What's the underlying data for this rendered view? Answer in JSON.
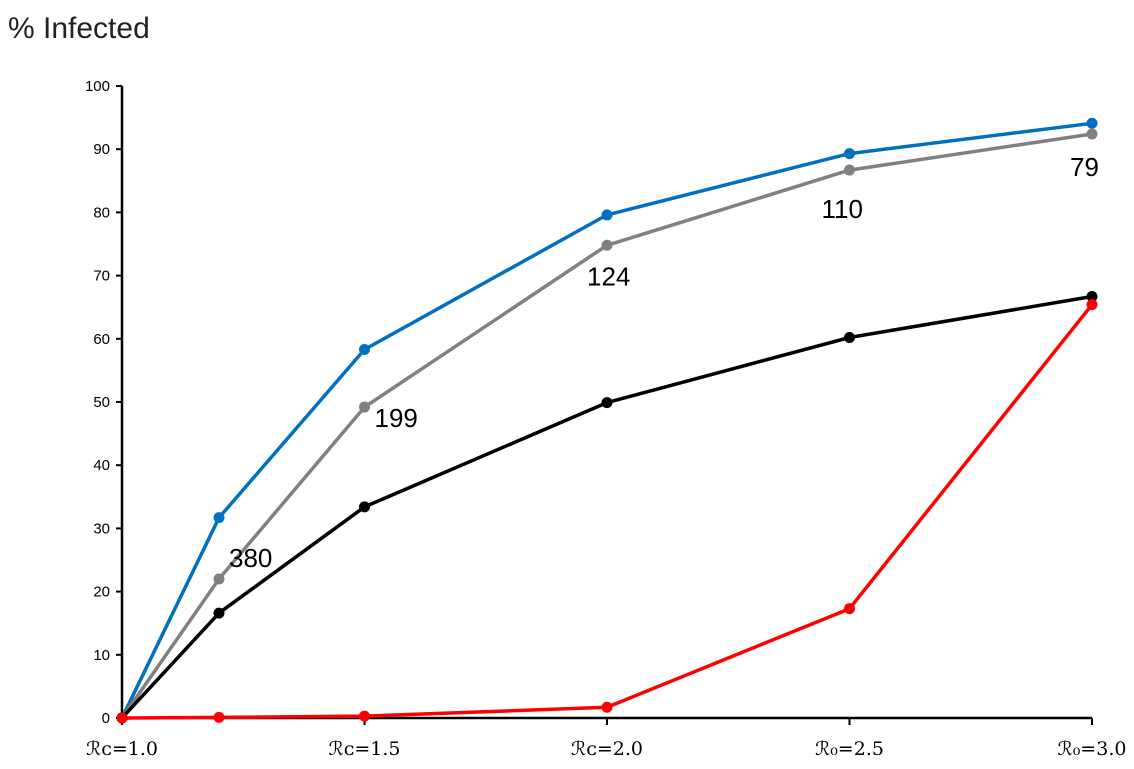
{
  "chart_data": {
    "type": "line",
    "title": "% Infected",
    "xlabel": "",
    "ylabel": "",
    "ylim": [
      0,
      100
    ],
    "yticks": [
      0,
      10,
      20,
      30,
      40,
      50,
      60,
      70,
      80,
      90,
      100
    ],
    "x_range": [
      1.0,
      3.0
    ],
    "categories": [
      {
        "x": 1.0,
        "label": "ℛᴄ=1.0"
      },
      {
        "x": 1.5,
        "label": "ℛᴄ=1.5"
      },
      {
        "x": 2.0,
        "label": "ℛᴄ=2.0"
      },
      {
        "x": 2.5,
        "label": "ℛ₀=2.5"
      },
      {
        "x": 3.0,
        "label": "ℛ₀=3.0"
      }
    ],
    "x": [
      1.0,
      1.2,
      1.5,
      2.0,
      2.5,
      3.0
    ],
    "grid": false,
    "legend": "none",
    "series": [
      {
        "color": "#0070C0",
        "values": [
          0,
          31.7,
          58.3,
          79.6,
          89.3,
          94.1
        ]
      },
      {
        "color": "#808080",
        "values": [
          0,
          22.0,
          49.2,
          74.8,
          86.7,
          92.4
        ]
      },
      {
        "color": "#000000",
        "values": [
          0,
          16.6,
          33.4,
          49.9,
          60.2,
          66.7
        ]
      },
      {
        "color": "#FF0000",
        "values": [
          0,
          0.1,
          0.3,
          1.7,
          17.3,
          65.4
        ]
      }
    ],
    "annotations": [
      {
        "text": "380",
        "x": 1.2,
        "y": 22.0
      },
      {
        "text": "199",
        "x": 1.5,
        "y": 49.2
      },
      {
        "text": "124",
        "x": 2.0,
        "y": 74.8
      },
      {
        "text": "110",
        "x": 2.5,
        "y": 86.7
      },
      {
        "text": "79",
        "x": 3.0,
        "y": 92.4
      }
    ]
  }
}
